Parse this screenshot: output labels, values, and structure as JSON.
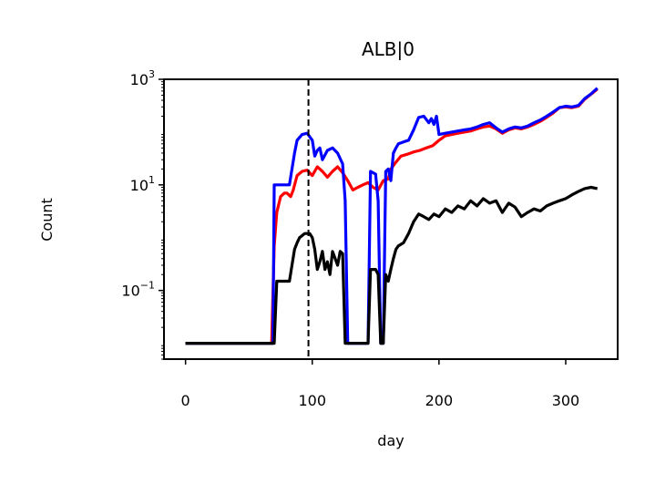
{
  "chart_data": {
    "type": "line",
    "title": "ALB|0",
    "xlabel": "day",
    "ylabel": "Count",
    "xlim": [
      -17,
      341
    ],
    "ylim": [
      0.005,
      1000
    ],
    "y_scale": "log",
    "x_ticks": [
      0,
      100,
      200,
      300
    ],
    "x_tick_labels": [
      "0",
      "100",
      "200",
      "300"
    ],
    "y_ticks": [
      0.1,
      10,
      1000
    ],
    "y_tick_labels": [
      {
        "base": "10",
        "exp": "−1"
      },
      {
        "base": "10",
        "exp": "1"
      },
      {
        "base": "10",
        "exp": "3"
      }
    ],
    "grid": false,
    "vline": {
      "x": 97,
      "style": "dashed",
      "color": "#000000"
    },
    "series": [
      {
        "color": "#ff0000",
        "points": [
          [
            0,
            0.01
          ],
          [
            68,
            0.01
          ],
          [
            70,
            0.7
          ],
          [
            72,
            3
          ],
          [
            75,
            6
          ],
          [
            78,
            7
          ],
          [
            80,
            7
          ],
          [
            83,
            6
          ],
          [
            85,
            8
          ],
          [
            88,
            15
          ],
          [
            92,
            18
          ],
          [
            96,
            19
          ],
          [
            100,
            15
          ],
          [
            104,
            22
          ],
          [
            108,
            18
          ],
          [
            112,
            14
          ],
          [
            116,
            18
          ],
          [
            120,
            22
          ],
          [
            124,
            17
          ],
          [
            128,
            12
          ],
          [
            132,
            8
          ],
          [
            136,
            9
          ],
          [
            140,
            10
          ],
          [
            144,
            11
          ],
          [
            148,
            9
          ],
          [
            152,
            8
          ],
          [
            156,
            12
          ],
          [
            160,
            13
          ],
          [
            162,
            20
          ],
          [
            165,
            25
          ],
          [
            170,
            35
          ],
          [
            175,
            38
          ],
          [
            180,
            42
          ],
          [
            185,
            45
          ],
          [
            190,
            50
          ],
          [
            195,
            55
          ],
          [
            200,
            70
          ],
          [
            205,
            85
          ],
          [
            210,
            90
          ],
          [
            215,
            95
          ],
          [
            220,
            100
          ],
          [
            225,
            105
          ],
          [
            230,
            115
          ],
          [
            235,
            125
          ],
          [
            240,
            130
          ],
          [
            245,
            115
          ],
          [
            250,
            95
          ],
          [
            255,
            110
          ],
          [
            260,
            120
          ],
          [
            265,
            115
          ],
          [
            270,
            125
          ],
          [
            275,
            140
          ],
          [
            280,
            160
          ],
          [
            285,
            190
          ],
          [
            290,
            230
          ],
          [
            295,
            290
          ],
          [
            300,
            300
          ],
          [
            305,
            290
          ],
          [
            310,
            310
          ],
          [
            315,
            420
          ],
          [
            320,
            520
          ],
          [
            325,
            650
          ]
        ]
      },
      {
        "color": "#0000ff",
        "points": [
          [
            0,
            0.01
          ],
          [
            69,
            0.01
          ],
          [
            70,
            10
          ],
          [
            80,
            10
          ],
          [
            82,
            10
          ],
          [
            84,
            20
          ],
          [
            86,
            40
          ],
          [
            88,
            70
          ],
          [
            92,
            90
          ],
          [
            96,
            95
          ],
          [
            100,
            70
          ],
          [
            102,
            35
          ],
          [
            104,
            45
          ],
          [
            106,
            50
          ],
          [
            108,
            30
          ],
          [
            112,
            45
          ],
          [
            116,
            50
          ],
          [
            120,
            40
          ],
          [
            124,
            25
          ],
          [
            126,
            5
          ],
          [
            128,
            0.01
          ],
          [
            140,
            0.01
          ],
          [
            144,
            0.01
          ],
          [
            146,
            18
          ],
          [
            150,
            16
          ],
          [
            152,
            5
          ],
          [
            154,
            0.01
          ],
          [
            156,
            0.01
          ],
          [
            158,
            18
          ],
          [
            160,
            20
          ],
          [
            162,
            12
          ],
          [
            164,
            40
          ],
          [
            166,
            50
          ],
          [
            168,
            60
          ],
          [
            172,
            65
          ],
          [
            176,
            70
          ],
          [
            180,
            110
          ],
          [
            184,
            190
          ],
          [
            188,
            200
          ],
          [
            192,
            150
          ],
          [
            194,
            180
          ],
          [
            196,
            140
          ],
          [
            198,
            200
          ],
          [
            200,
            90
          ],
          [
            205,
            95
          ],
          [
            210,
            100
          ],
          [
            215,
            105
          ],
          [
            220,
            110
          ],
          [
            225,
            115
          ],
          [
            230,
            125
          ],
          [
            235,
            140
          ],
          [
            240,
            150
          ],
          [
            245,
            120
          ],
          [
            250,
            100
          ],
          [
            255,
            115
          ],
          [
            260,
            125
          ],
          [
            265,
            120
          ],
          [
            270,
            130
          ],
          [
            275,
            150
          ],
          [
            280,
            170
          ],
          [
            285,
            200
          ],
          [
            290,
            240
          ],
          [
            295,
            290
          ],
          [
            300,
            310
          ],
          [
            305,
            300
          ],
          [
            310,
            320
          ],
          [
            315,
            430
          ],
          [
            320,
            530
          ],
          [
            325,
            680
          ]
        ]
      },
      {
        "color": "#000000",
        "points": [
          [
            0,
            0.01
          ],
          [
            68,
            0.01
          ],
          [
            70,
            0.01
          ],
          [
            72,
            0.15
          ],
          [
            78,
            0.15
          ],
          [
            82,
            0.15
          ],
          [
            84,
            0.3
          ],
          [
            86,
            0.6
          ],
          [
            88,
            0.8
          ],
          [
            90,
            1.0
          ],
          [
            94,
            1.2
          ],
          [
            98,
            1.2
          ],
          [
            100,
            1.0
          ],
          [
            102,
            0.6
          ],
          [
            104,
            0.25
          ],
          [
            106,
            0.35
          ],
          [
            108,
            0.55
          ],
          [
            110,
            0.25
          ],
          [
            112,
            0.35
          ],
          [
            114,
            0.2
          ],
          [
            116,
            0.55
          ],
          [
            120,
            0.3
          ],
          [
            122,
            0.55
          ],
          [
            124,
            0.5
          ],
          [
            126,
            0.01
          ],
          [
            140,
            0.01
          ],
          [
            144,
            0.01
          ],
          [
            146,
            0.25
          ],
          [
            150,
            0.25
          ],
          [
            152,
            0.2
          ],
          [
            154,
            0.01
          ],
          [
            156,
            0.01
          ],
          [
            158,
            0.2
          ],
          [
            160,
            0.15
          ],
          [
            162,
            0.25
          ],
          [
            164,
            0.4
          ],
          [
            166,
            0.6
          ],
          [
            168,
            0.7
          ],
          [
            172,
            0.8
          ],
          [
            176,
            1.2
          ],
          [
            180,
            2.0
          ],
          [
            184,
            2.8
          ],
          [
            188,
            2.5
          ],
          [
            192,
            2.2
          ],
          [
            196,
            2.8
          ],
          [
            200,
            2.5
          ],
          [
            205,
            3.5
          ],
          [
            210,
            3.0
          ],
          [
            215,
            4.0
          ],
          [
            220,
            3.5
          ],
          [
            225,
            5.0
          ],
          [
            230,
            4.0
          ],
          [
            235,
            5.5
          ],
          [
            240,
            4.5
          ],
          [
            245,
            5.0
          ],
          [
            250,
            3.0
          ],
          [
            255,
            4.5
          ],
          [
            260,
            3.8
          ],
          [
            265,
            2.5
          ],
          [
            270,
            3.0
          ],
          [
            275,
            3.5
          ],
          [
            280,
            3.2
          ],
          [
            285,
            4.0
          ],
          [
            290,
            4.5
          ],
          [
            295,
            5.0
          ],
          [
            300,
            5.5
          ],
          [
            305,
            6.5
          ],
          [
            310,
            7.5
          ],
          [
            315,
            8.5
          ],
          [
            320,
            9.0
          ],
          [
            325,
            8.5
          ]
        ]
      }
    ]
  }
}
